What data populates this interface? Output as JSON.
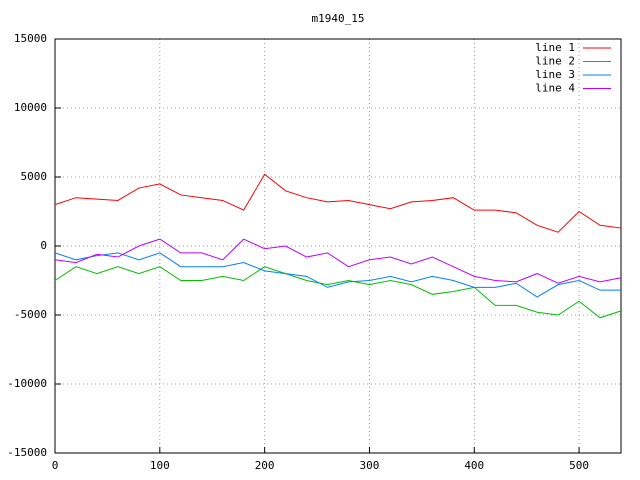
{
  "chart_data": {
    "type": "line",
    "title": "m1940_15",
    "x": [
      0,
      20,
      40,
      60,
      80,
      100,
      120,
      140,
      160,
      180,
      200,
      220,
      240,
      260,
      280,
      300,
      320,
      340,
      360,
      380,
      400,
      420,
      440,
      460,
      480,
      500,
      520,
      540
    ],
    "series": [
      {
        "name": "line 1",
        "color": "#ff0000",
        "values": [
          3000,
          3500,
          3400,
          3300,
          4200,
          4500,
          3700,
          3500,
          3300,
          2600,
          5200,
          4000,
          3500,
          3200,
          3300,
          3000,
          2700,
          3200,
          3300,
          3500,
          2600,
          2600,
          2400,
          1500,
          1000,
          2500,
          1500,
          1300
        ]
      },
      {
        "name": "line 2",
        "color": "#00c000",
        "values": [
          -2500,
          -1500,
          -2000,
          -1500,
          -2000,
          -1500,
          -2500,
          -2500,
          -2200,
          -2500,
          -1500,
          -2000,
          -2500,
          -2800,
          -2500,
          -2800,
          -2500,
          -2800,
          -3500,
          -3300,
          -3000,
          -4300,
          -4300,
          -4800,
          -5000,
          -4000,
          -5200,
          -4700
        ]
      },
      {
        "name": "line 3",
        "color": "#0080ff",
        "values": [
          -500,
          -1000,
          -700,
          -500,
          -1000,
          -500,
          -1500,
          -1500,
          -1500,
          -1200,
          -1800,
          -2000,
          -2200,
          -3000,
          -2600,
          -2500,
          -2200,
          -2600,
          -2200,
          -2500,
          -3000,
          -3000,
          -2700,
          -3700,
          -2800,
          -2500,
          -3200,
          -3200
        ]
      },
      {
        "name": "line 4",
        "color": "#c000ff",
        "values": [
          -1000,
          -1200,
          -600,
          -800,
          0,
          500,
          -500,
          -500,
          -1000,
          500,
          -200,
          0,
          -800,
          -500,
          -1500,
          -1000,
          -800,
          -1300,
          -800,
          -1500,
          -2200,
          -2500,
          -2600,
          -2000,
          -2700,
          -2200,
          -2600,
          -2300
        ]
      }
    ],
    "xlim": [
      0,
      540
    ],
    "xticks": [
      0,
      100,
      200,
      300,
      400,
      500
    ],
    "ylim": [
      -15000,
      15000
    ],
    "yticks": [
      -15000,
      -10000,
      -5000,
      0,
      5000,
      10000,
      15000
    ],
    "grid": true,
    "legend": "top-right"
  }
}
